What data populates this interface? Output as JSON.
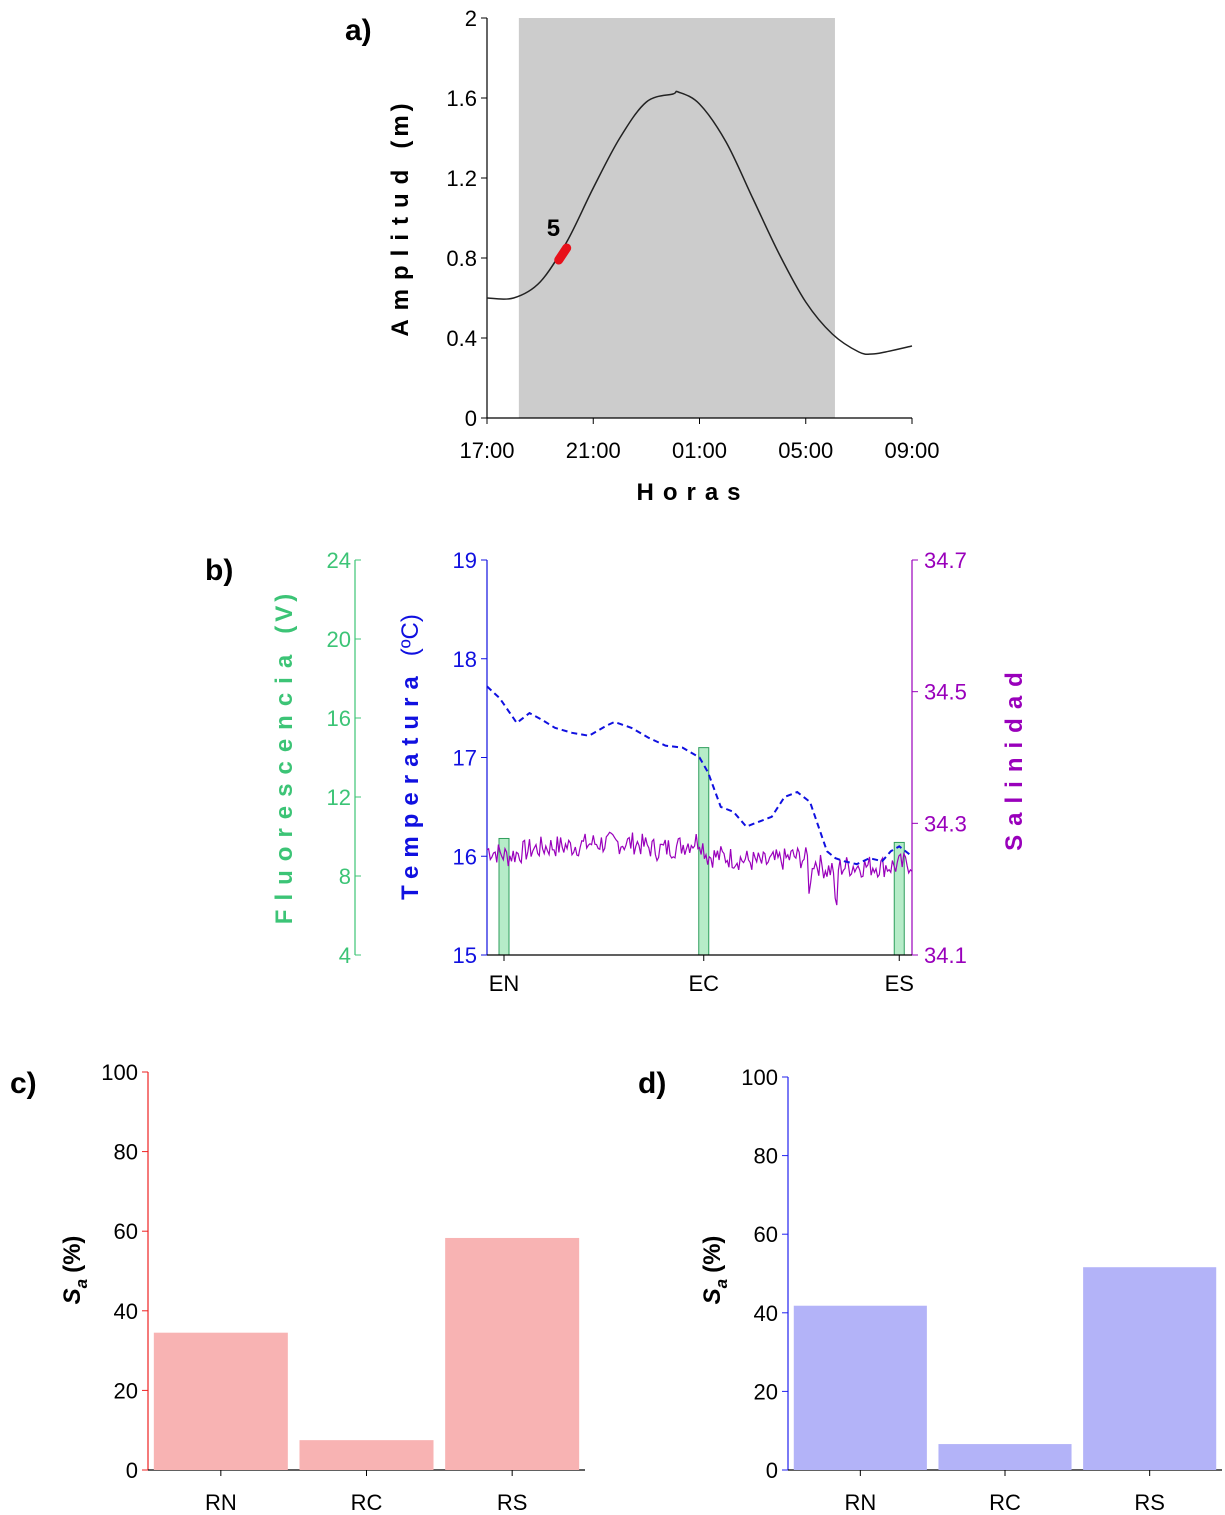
{
  "chart_data": [
    {
      "id": "a",
      "panel_label": "a)",
      "type": "line",
      "xlabel": "Horas",
      "ylabel": "Amplitud (m)",
      "ylabel_main": "Amplitud",
      "ylabel_unit": "(m)",
      "x_ticks": [
        "17:00",
        "21:00",
        "01:00",
        "05:00",
        "09:00"
      ],
      "x_range_hours": [
        0,
        16
      ],
      "ylim": [
        0,
        2
      ],
      "y_ticks": [
        "0",
        "0.4",
        "0.8",
        "1.2",
        "1.6",
        "2"
      ],
      "night_shading_hours": [
        1.2,
        13.1
      ],
      "series": [
        {
          "x_hours": [
            0,
            1,
            2,
            3,
            4,
            5,
            6,
            7,
            7.2,
            8,
            9,
            10,
            11,
            12,
            13,
            14,
            14.5,
            15,
            16
          ],
          "values": [
            0.6,
            0.6,
            0.68,
            0.88,
            1.15,
            1.4,
            1.58,
            1.62,
            1.63,
            1.57,
            1.38,
            1.1,
            0.82,
            0.58,
            0.42,
            0.33,
            0.32,
            0.33,
            0.36
          ]
        }
      ],
      "annotations": [
        {
          "text": "5",
          "x_hours": [
            2.7,
            3.0
          ],
          "values": [
            0.79,
            0.85
          ],
          "color": "#e8101a"
        }
      ],
      "colors": {
        "shading": "#cccccc",
        "line": "#222222",
        "highlight": "#e8101a"
      }
    },
    {
      "id": "b",
      "panel_label": "b)",
      "type": "line",
      "categories": [
        "EN",
        "EC",
        "ES"
      ],
      "category_positions": [
        0.04,
        0.51,
        0.97
      ],
      "axes": {
        "fluorescencia": {
          "label_main": "Fluorescencia",
          "label_unit": "(V)",
          "ylim": [
            4,
            24
          ],
          "ticks": [
            "4",
            "8",
            "12",
            "16",
            "20",
            "24"
          ],
          "color": "#3cc476"
        },
        "temperatura": {
          "label_main": "Temperatura",
          "label_unit": "(ºC)",
          "ylim": [
            15,
            19
          ],
          "ticks": [
            "15",
            "16",
            "17",
            "18",
            "19"
          ],
          "color": "#1010e0"
        },
        "salinidad": {
          "label": "Salinidad",
          "ylim": [
            34.1,
            34.7
          ],
          "ticks": [
            "34.1",
            "34.3",
            "34.5",
            "34.7"
          ],
          "color": "#9900bb"
        }
      },
      "series": [
        {
          "axis": "temperatura",
          "style": "dashed",
          "x": [
            0,
            0.03,
            0.07,
            0.1,
            0.13,
            0.16,
            0.2,
            0.24,
            0.28,
            0.3,
            0.34,
            0.38,
            0.42,
            0.46,
            0.5,
            0.52,
            0.55,
            0.58,
            0.61,
            0.64,
            0.67,
            0.7,
            0.73,
            0.76,
            0.78,
            0.8,
            0.82,
            0.84,
            0.87,
            0.9,
            0.93,
            0.95,
            0.97,
            1.0
          ],
          "values": [
            17.72,
            17.6,
            17.35,
            17.45,
            17.38,
            17.3,
            17.25,
            17.22,
            17.32,
            17.36,
            17.3,
            17.2,
            17.12,
            17.1,
            17.0,
            16.85,
            16.5,
            16.45,
            16.3,
            16.35,
            16.4,
            16.6,
            16.65,
            16.55,
            16.3,
            16.05,
            15.98,
            15.95,
            15.92,
            15.98,
            15.95,
            16.05,
            16.1,
            16.0
          ],
          "color": "#1010e0"
        },
        {
          "axis": "salinidad",
          "style": "solid",
          "x": [
            0,
            0.05,
            0.1,
            0.15,
            0.2,
            0.25,
            0.3,
            0.35,
            0.4,
            0.45,
            0.5,
            0.52,
            0.55,
            0.6,
            0.65,
            0.7,
            0.72,
            0.76,
            0.8,
            0.85,
            0.9,
            0.95,
            1.0
          ],
          "values": [
            34.26,
            34.25,
            34.26,
            34.265,
            34.265,
            34.27,
            34.27,
            34.27,
            34.26,
            34.265,
            34.275,
            34.25,
            34.25,
            34.245,
            34.24,
            34.245,
            34.25,
            34.245,
            34.23,
            34.235,
            34.235,
            34.235,
            34.24
          ],
          "color": "#9900bb"
        },
        {
          "axis": "fluorescencia",
          "type": "bar",
          "categories": [
            "EN",
            "EC",
            "ES"
          ],
          "values": [
            9.9,
            14.5,
            9.7
          ],
          "color": "#b6ecc8"
        }
      ]
    },
    {
      "id": "c",
      "panel_label": "c)",
      "type": "bar",
      "categories": [
        "RN",
        "RC",
        "RS"
      ],
      "values": [
        34.5,
        7.5,
        58.3
      ],
      "ylabel_main": "S",
      "ylabel_sub": "a",
      "ylabel_unit": "(%)",
      "ylim": [
        0,
        100
      ],
      "y_ticks": [
        "0",
        "20",
        "40",
        "60",
        "80",
        "100"
      ],
      "colors": {
        "bar": "#f8b3b3",
        "axis": "#ee2222"
      }
    },
    {
      "id": "d",
      "panel_label": "d)",
      "type": "bar",
      "categories": [
        "RN",
        "RC",
        "RS"
      ],
      "values": [
        41.8,
        6.6,
        51.6
      ],
      "ylabel_main": "S",
      "ylabel_sub": "a",
      "ylabel_unit": "(%)",
      "ylim": [
        0,
        100
      ],
      "y_ticks": [
        "0",
        "20",
        "40",
        "60",
        "80",
        "100"
      ],
      "colors": {
        "bar": "#b3b3f8",
        "axis": "#2222ee"
      }
    }
  ]
}
